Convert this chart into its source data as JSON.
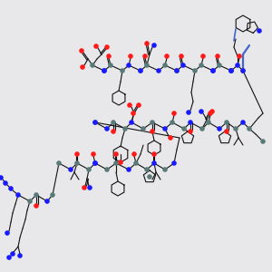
{
  "background_color": "#e8e8ea",
  "C_color": "#5a7a7a",
  "N_color": "#1a1aff",
  "O_color": "#ff1a1a",
  "bond_color": "#111111",
  "bond_lw": 0.8,
  "atom_r": 2.8,
  "figsize": [
    3.0,
    3.0
  ],
  "dpi": 100,
  "xlim": [
    0,
    300
  ],
  "ylim": [
    0,
    300
  ]
}
